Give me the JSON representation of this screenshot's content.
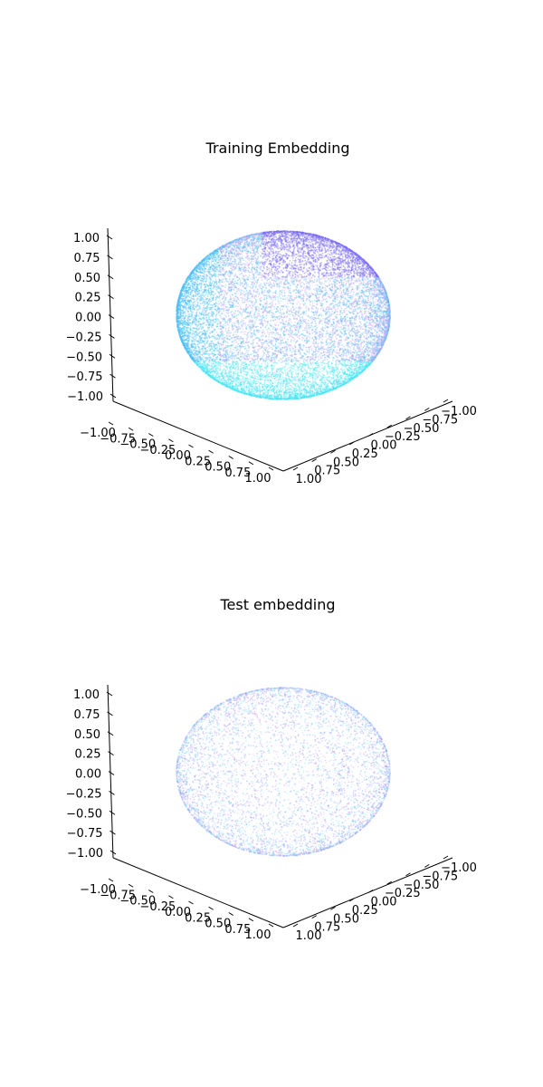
{
  "chart_data": [
    {
      "type": "scatter",
      "projection": "3d",
      "title": "Training Embedding",
      "xlim": [
        -1,
        1
      ],
      "ylim": [
        -1,
        1
      ],
      "zlim": [
        -1,
        1
      ],
      "x_ticks": [
        "−1.00",
        "−0.75",
        "−0.50",
        "−0.25",
        "0.00",
        "0.25",
        "0.50",
        "0.75",
        "1.00"
      ],
      "y_ticks": [
        "−1.00",
        "−0.75",
        "−0.50",
        "−0.25",
        "0.00",
        "0.25",
        "0.50",
        "0.75",
        "1.00"
      ],
      "z_ticks": [
        "−1.00",
        "−0.75",
        "−0.50",
        "−0.25",
        "0.00",
        "0.25",
        "0.50",
        "0.75",
        "1.00"
      ],
      "series": [
        {
          "shape": "unit sphere surface",
          "point_count": 20000,
          "colors": [
            "#7b6cf6",
            "#4dbff5",
            "#4de6f5",
            "#c9a6f5"
          ]
        }
      ]
    },
    {
      "type": "scatter",
      "projection": "3d",
      "title": "Test embedding",
      "xlim": [
        -1,
        1
      ],
      "ylim": [
        -1,
        1
      ],
      "zlim": [
        -1,
        1
      ],
      "x_ticks": [
        "−1.00",
        "−0.75",
        "−0.50",
        "−0.25",
        "0.00",
        "0.25",
        "0.50",
        "0.75",
        "1.00"
      ],
      "y_ticks": [
        "−1.00",
        "−0.75",
        "−0.50",
        "−0.25",
        "0.00",
        "0.25",
        "0.50",
        "0.75",
        "1.00"
      ],
      "z_ticks": [
        "−1.00",
        "−0.75",
        "−0.50",
        "−0.25",
        "0.00",
        "0.25",
        "0.50",
        "0.75",
        "1.00"
      ],
      "series": [
        {
          "shape": "unit sphere surface",
          "point_count": 8000,
          "colors": [
            "#b58af5",
            "#6fb8f7",
            "#7ef0f5",
            "#d6b8f8"
          ]
        }
      ]
    }
  ]
}
